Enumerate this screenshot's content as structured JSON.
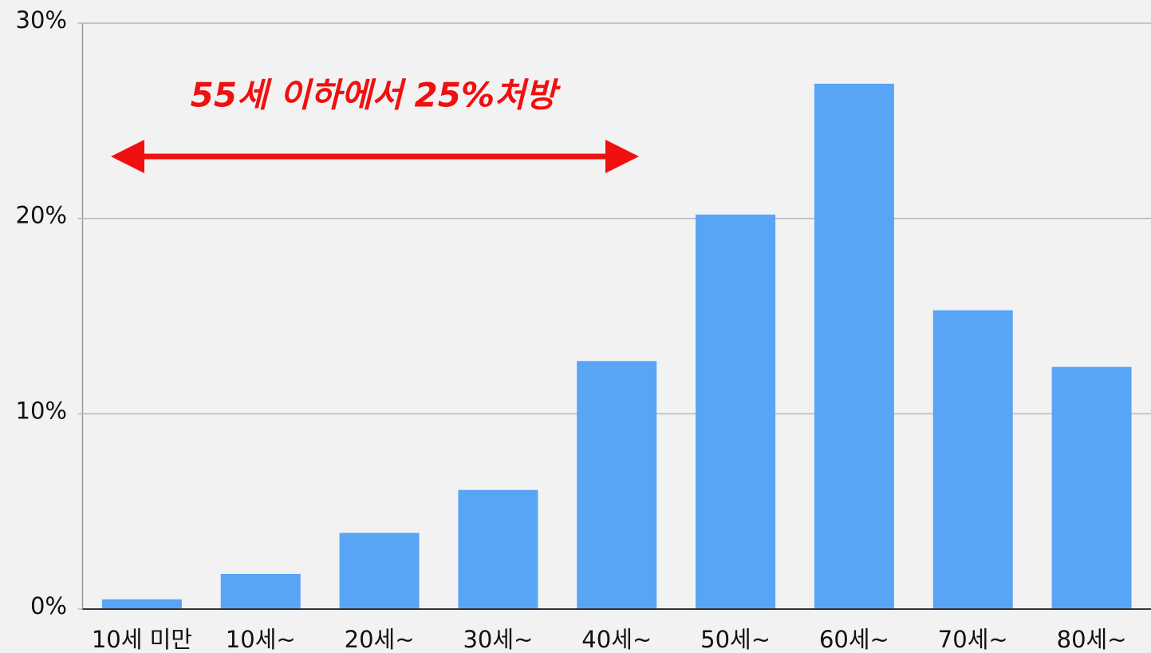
{
  "chart_data": {
    "type": "bar",
    "categories": [
      "10세 미만",
      "10세~",
      "20세~",
      "30세~",
      "40세~",
      "50세~",
      "60세~",
      "70세~",
      "80세~"
    ],
    "values": [
      0.5,
      1.8,
      3.9,
      6.1,
      12.7,
      20.2,
      26.9,
      15.3,
      12.4
    ],
    "color": "#58a5f5",
    "ylim": [
      0,
      30
    ],
    "yticks": [
      {
        "value": 0,
        "label": "0%"
      },
      {
        "value": 10,
        "label": "10%"
      },
      {
        "value": 20,
        "label": "20%"
      },
      {
        "value": 30,
        "label": "30%"
      }
    ],
    "grid": true,
    "annotation": "55세 이하에서 25%처방"
  }
}
